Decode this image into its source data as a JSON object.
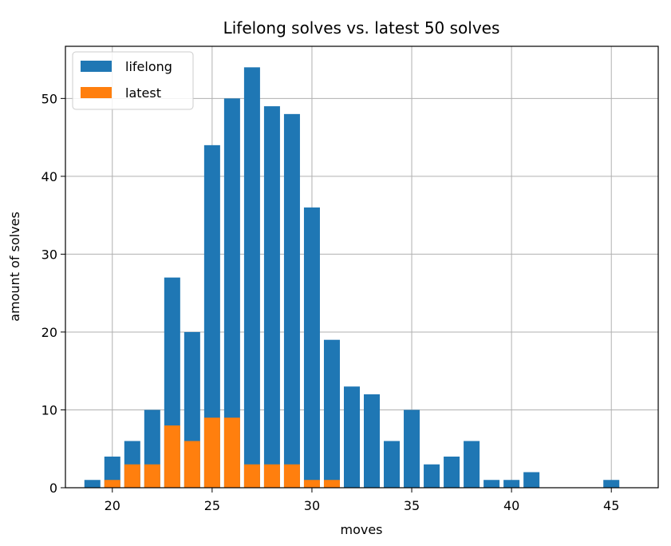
{
  "chart_data": {
    "type": "bar",
    "title": "Lifelong solves vs. latest 50 solves",
    "xlabel": "moves",
    "ylabel": "amount of solves",
    "xlim": [
      17.65,
      47.35
    ],
    "ylim": [
      0,
      56.7
    ],
    "xticks": [
      20,
      25,
      30,
      35,
      40,
      45
    ],
    "yticks": [
      0,
      10,
      20,
      30,
      40,
      50
    ],
    "grid": true,
    "legend_position": "top-left",
    "bar_width": 0.8,
    "x": [
      19,
      20,
      21,
      22,
      23,
      24,
      25,
      26,
      27,
      28,
      29,
      30,
      31,
      32,
      33,
      34,
      35,
      36,
      37,
      38,
      39,
      40,
      41,
      45
    ],
    "series": [
      {
        "name": "lifelong",
        "color": "#1f77b4",
        "values": [
          1,
          4,
          6,
          10,
          27,
          20,
          44,
          50,
          54,
          49,
          48,
          36,
          19,
          13,
          12,
          6,
          10,
          3,
          4,
          6,
          1,
          1,
          2,
          1
        ]
      },
      {
        "name": "latest",
        "color": "#ff7f0e",
        "values": [
          0,
          1,
          3,
          3,
          8,
          6,
          9,
          9,
          3,
          3,
          3,
          1,
          1,
          0,
          0,
          0,
          0,
          0,
          0,
          0,
          0,
          0,
          0,
          0
        ]
      }
    ]
  }
}
